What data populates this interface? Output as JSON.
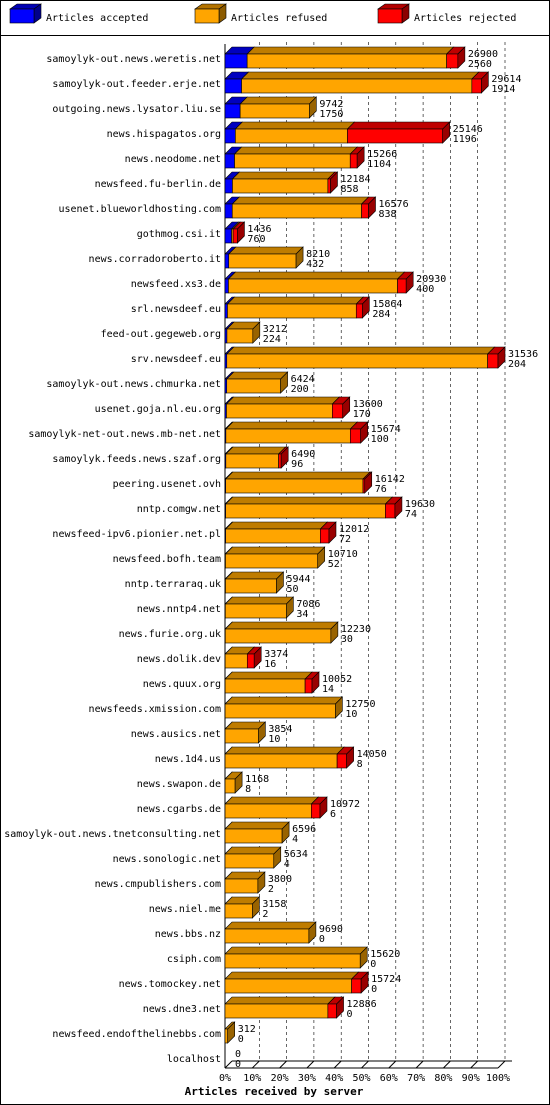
{
  "chart_data": {
    "type": "bar",
    "orientation": "horizontal",
    "stacked": true,
    "x_label": "Articles received by server",
    "categories": [
      "samoylyk-out.news.weretis.net",
      "samoylyk-out.feeder.erje.net",
      "outgoing.news.lysator.liu.se",
      "news.hispagatos.org",
      "news.neodome.net",
      "newsfeed.fu-berlin.de",
      "usenet.blueworldhosting.com",
      "gothmog.csi.it",
      "news.corradoroberto.it",
      "newsfeed.xs3.de",
      "srl.newsdeef.eu",
      "feed-out.gegeweb.org",
      "srv.newsdeef.eu",
      "samoylyk-out.news.chmurka.net",
      "usenet.goja.nl.eu.org",
      "samoylyk-net-out.news.mb-net.net",
      "samoylyk.feeds.news.szaf.org",
      "peering.usenet.ovh",
      "nntp.comgw.net",
      "newsfeed-ipv6.pionier.net.pl",
      "newsfeed.bofh.team",
      "nntp.terraraq.uk",
      "news.nntp4.net",
      "news.furie.org.uk",
      "news.dolik.dev",
      "news.quux.org",
      "newsfeeds.xmission.com",
      "news.ausics.net",
      "news.1d4.us",
      "news.swapon.de",
      "news.cgarbs.de",
      "samoylyk-out.news.tnetconsulting.net",
      "news.sonologic.net",
      "news.cmpublishers.com",
      "news.niel.me",
      "news.bbs.nz",
      "csiph.com",
      "news.tomockey.net",
      "news.dne3.net",
      "newsfeed.endofthelinebbs.com",
      "localhost"
    ],
    "totals": [
      26900,
      29614,
      9742,
      25146,
      15266,
      12184,
      16576,
      1436,
      8210,
      20930,
      15864,
      3212,
      31536,
      6424,
      13600,
      15674,
      6490,
      16142,
      19630,
      12012,
      10710,
      5944,
      7086,
      12230,
      3374,
      10052,
      12750,
      3854,
      14050,
      1168,
      10972,
      6596,
      5634,
      3800,
      3158,
      9690,
      15620,
      15724,
      12886,
      312,
      0
    ],
    "series": [
      {
        "name": "Articles accepted",
        "color": "#0000ff",
        "values": [
          2560,
          1914,
          1750,
          1196,
          1104,
          858,
          838,
          760,
          432,
          400,
          284,
          224,
          204,
          200,
          170,
          100,
          96,
          76,
          74,
          72,
          52,
          50,
          34,
          30,
          16,
          14,
          10,
          10,
          8,
          8,
          6,
          4,
          4,
          2,
          2,
          0,
          0,
          0,
          0,
          0,
          0
        ]
      },
      {
        "name": "Articles refused",
        "color": "#ffa500",
        "values": [
          23040,
          26600,
          7992,
          12950,
          13362,
          11026,
          14938,
          176,
          7778,
          19530,
          14880,
          2988,
          30132,
          6224,
          12230,
          14374,
          6094,
          15866,
          18456,
          10940,
          10658,
          5894,
          7052,
          12200,
          2558,
          9238,
          12740,
          3844,
          12942,
          1160,
          9966,
          6592,
          5630,
          3798,
          3156,
          9690,
          15620,
          14624,
          11886,
          312,
          0
        ]
      },
      {
        "name": "Articles rejected",
        "color": "#ff0000",
        "values": [
          1300,
          1100,
          0,
          11000,
          800,
          300,
          800,
          500,
          0,
          1000,
          700,
          0,
          1200,
          0,
          1200,
          1200,
          300,
          200,
          1100,
          1000,
          0,
          0,
          0,
          0,
          800,
          800,
          0,
          0,
          1100,
          0,
          1000,
          0,
          0,
          0,
          0,
          0,
          0,
          1100,
          1000,
          0,
          0
        ]
      }
    ],
    "xlim": [
      0,
      31536
    ],
    "xticks": [
      {
        "value": 0,
        "label": "0%"
      },
      {
        "value": 3153.6,
        "label": "10%"
      },
      {
        "value": 6307.2,
        "label": "20%"
      },
      {
        "value": 9460.8,
        "label": "30%"
      },
      {
        "value": 12614.4,
        "label": "40%"
      },
      {
        "value": 15768,
        "label": "50%"
      },
      {
        "value": 18921.6,
        "label": "60%"
      },
      {
        "value": 22075.2,
        "label": "70%"
      },
      {
        "value": 25228.8,
        "label": "80%"
      },
      {
        "value": 28382.4,
        "label": "90%"
      },
      {
        "value": 31536,
        "label": "100%"
      }
    ],
    "grid": true
  }
}
